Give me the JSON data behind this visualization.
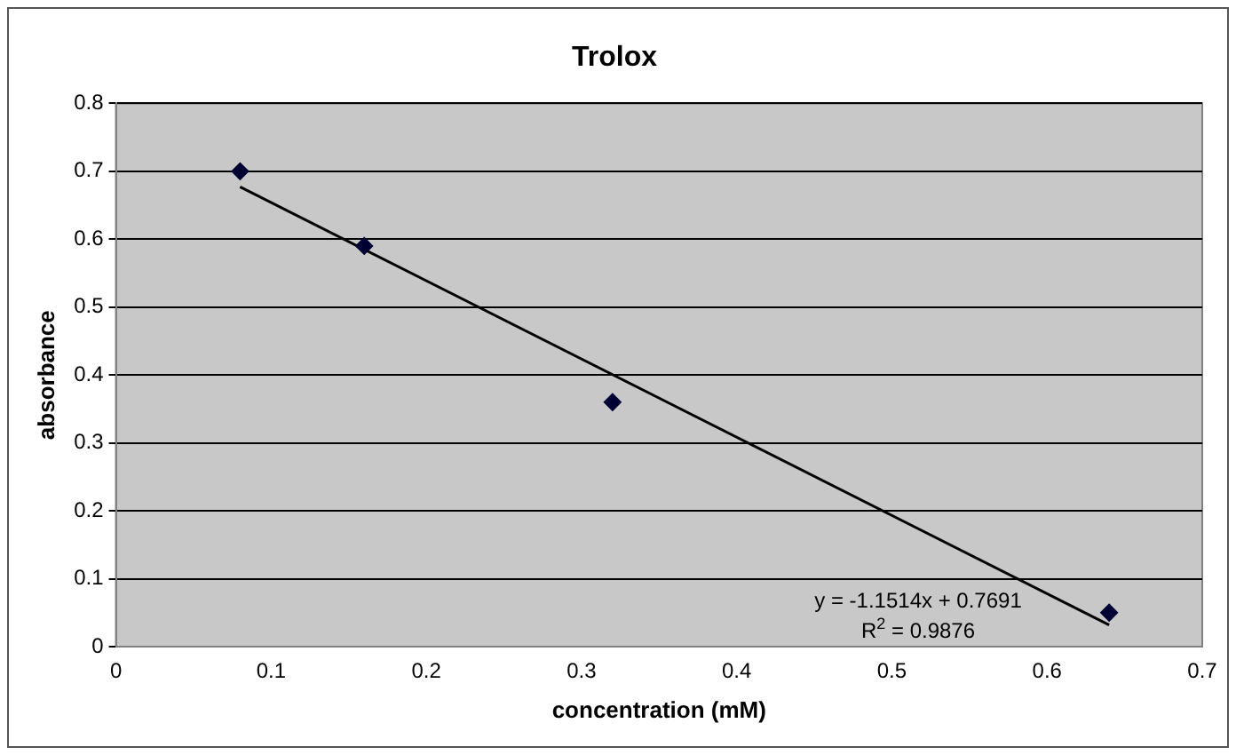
{
  "chart_data": {
    "type": "scatter",
    "title": "Trolox",
    "xlabel": "concentration (mM)",
    "ylabel": "absorbance",
    "series": [
      {
        "color": "#000033",
        "x": [
          0.08,
          0.16,
          0.32,
          0.64
        ],
        "values": [
          0.7,
          0.59,
          0.36,
          0.05
        ]
      },
      {
        "type": "line",
        "marker": "none",
        "color": "#000000",
        "x": [
          0.08,
          0.64
        ],
        "values": [
          0.677,
          0.032
        ]
      }
    ],
    "xlim": [
      0,
      0.7
    ],
    "xticks": [
      0,
      0.1,
      0.2,
      0.3,
      0.4,
      0.5,
      0.6,
      0.7
    ],
    "ylim": [
      0,
      0.8
    ],
    "yticks": [
      0,
      0.1,
      0.2,
      0.3,
      0.4,
      0.5,
      0.6,
      0.7,
      0.8
    ],
    "grid": "y",
    "legend": false,
    "marker": "diamond",
    "annotations": [
      "y = -1.1514x + 0.7691",
      "R$^{2}$ = 0.9876"
    ]
  }
}
